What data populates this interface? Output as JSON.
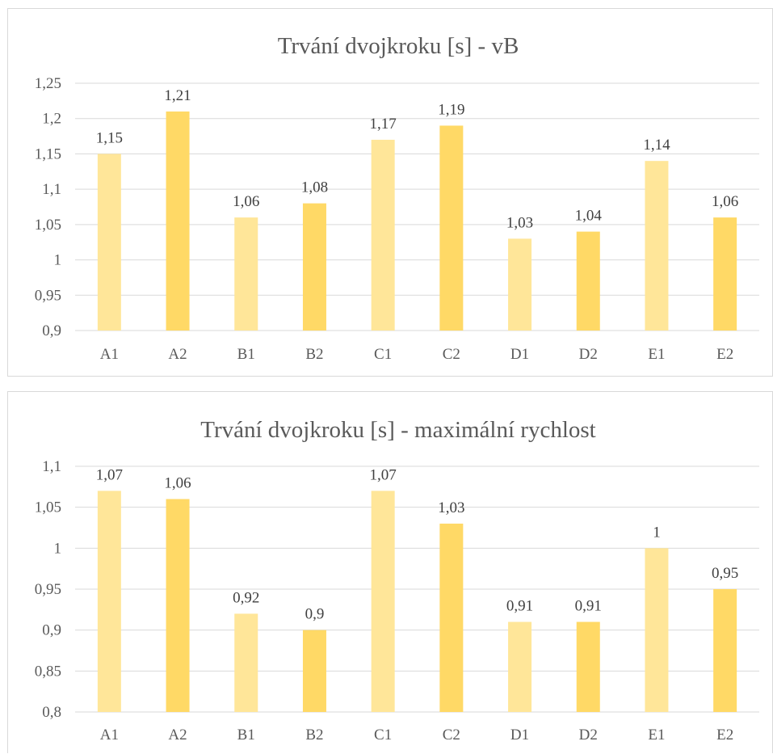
{
  "colors": {
    "series_light": "#ffe699",
    "series_dark": "#ffd966",
    "text": "#595959",
    "grid": "#d9d9d9"
  },
  "chart_data": [
    {
      "type": "bar",
      "title": "Trvání dvojkroku [s] - vB",
      "xlabel": "",
      "ylabel": "",
      "categories": [
        "A1",
        "A2",
        "B1",
        "B2",
        "C1",
        "C2",
        "D1",
        "D2",
        "E1",
        "E2"
      ],
      "values": [
        1.15,
        1.21,
        1.06,
        1.08,
        1.17,
        1.19,
        1.03,
        1.04,
        1.14,
        1.06
      ],
      "data_labels": [
        "1,15",
        "1,21",
        "1,06",
        "1,08",
        "1,17",
        "1,19",
        "1,03",
        "1,04",
        "1,14",
        "1,06"
      ],
      "ylim": [
        0.9,
        1.25
      ],
      "yticks": [
        0.9,
        0.95,
        1,
        1.05,
        1.1,
        1.15,
        1.2,
        1.25
      ],
      "ytick_labels": [
        "0,9",
        "0,95",
        "1",
        "1,05",
        "1,1",
        "1,15",
        "1,2",
        "1,25"
      ],
      "grid": true,
      "legend": "none"
    },
    {
      "type": "bar",
      "title": "Trvání dvojkroku [s] - maximální rychlost",
      "xlabel": "",
      "ylabel": "",
      "categories": [
        "A1",
        "A2",
        "B1",
        "B2",
        "C1",
        "C2",
        "D1",
        "D2",
        "E1",
        "E2"
      ],
      "values": [
        1.07,
        1.06,
        0.92,
        0.9,
        1.07,
        1.03,
        0.91,
        0.91,
        1.0,
        0.95
      ],
      "data_labels": [
        "1,07",
        "1,06",
        "0,92",
        "0,9",
        "1,07",
        "1,03",
        "0,91",
        "0,91",
        "1",
        "0,95"
      ],
      "ylim": [
        0.8,
        1.1
      ],
      "yticks": [
        0.8,
        0.85,
        0.9,
        0.95,
        1,
        1.05,
        1.1
      ],
      "ytick_labels": [
        "0,8",
        "0,85",
        "0,9",
        "0,95",
        "1",
        "1,05",
        "1,1"
      ],
      "grid": true,
      "legend": "none"
    }
  ]
}
